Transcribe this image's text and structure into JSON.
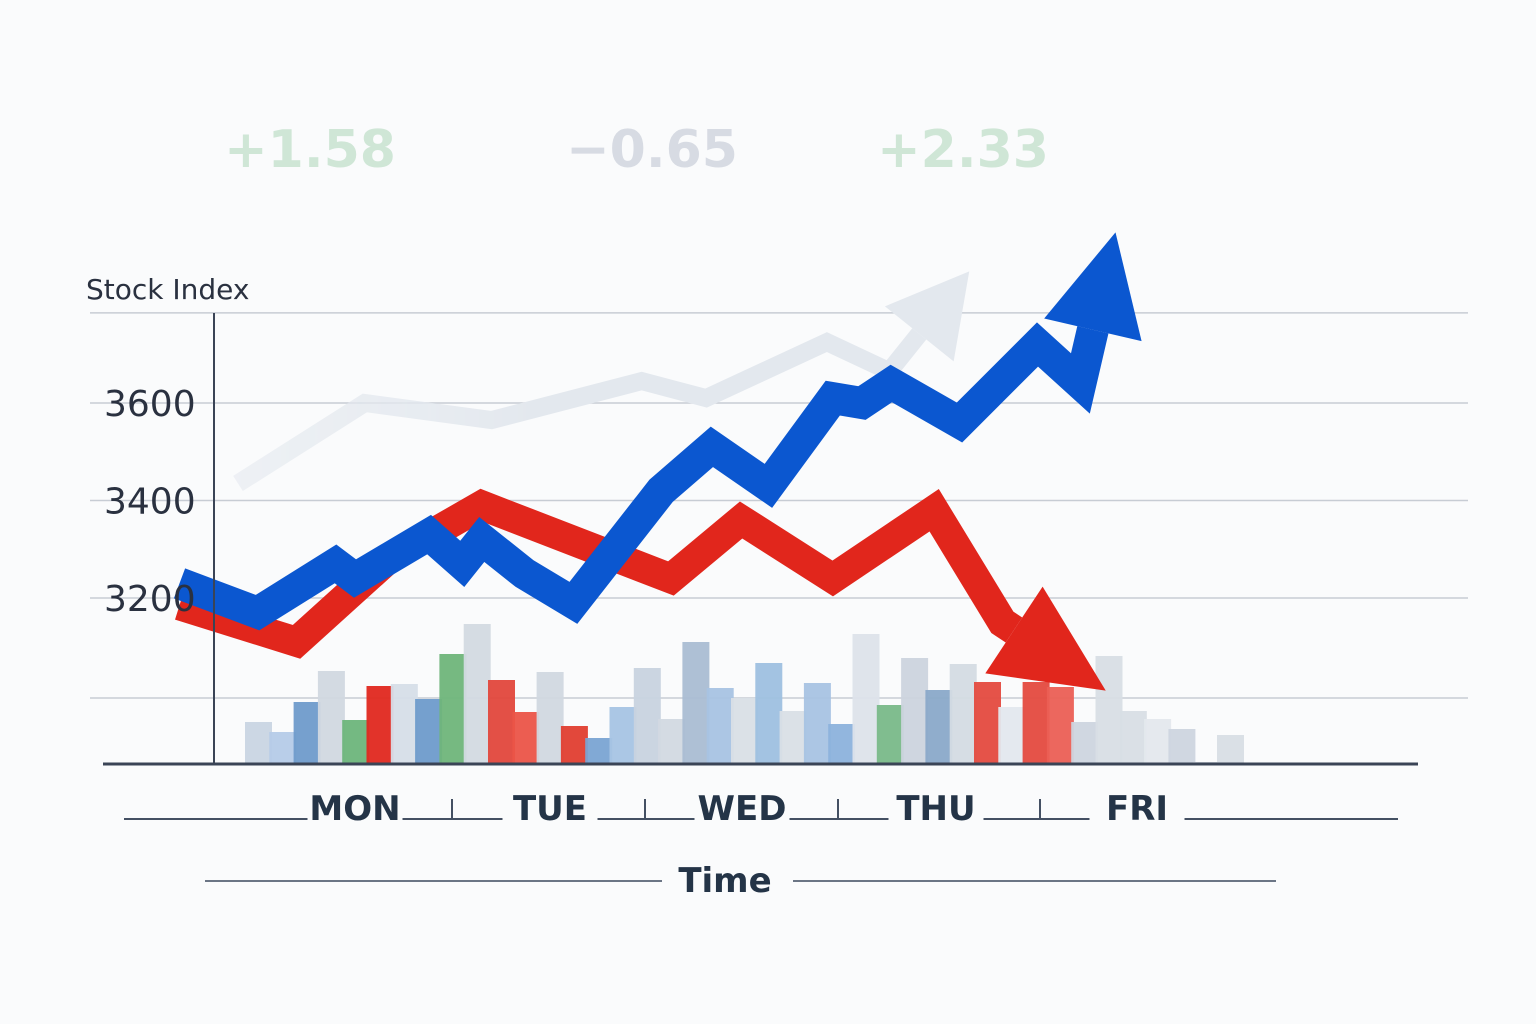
{
  "chart_data": {
    "type": "line",
    "ylabel": "Stock Index",
    "xlabel": "Time",
    "categories": [
      "MON",
      "TUE",
      "WED",
      "THU",
      "FRI"
    ],
    "yticks": [
      3200,
      3400,
      3600
    ],
    "ylim": [
      2960,
      3780
    ],
    "grid": true,
    "annotations": [
      {
        "text": "+1.58",
        "color": "#cfe6d6"
      },
      {
        "text": "−0.65",
        "color": "#d7dbe3"
      },
      {
        "text": "+2.33",
        "color": "#cfe6d6"
      }
    ],
    "series": [
      {
        "color": "#0b57d0",
        "x": [
          -0.9,
          -0.5,
          -0.1,
          0.0,
          0.38,
          0.55,
          0.65,
          0.87,
          1.12,
          1.57,
          1.83,
          2.12,
          2.45,
          2.6,
          2.75,
          3.1,
          3.5,
          3.72,
          3.9
        ],
        "values": [
          3230,
          3170,
          3270,
          3240,
          3330,
          3270,
          3320,
          3250,
          3190,
          3420,
          3510,
          3430,
          3610,
          3600,
          3640,
          3560,
          3720,
          3640,
          3950
        ]
      },
      {
        "color": "#e1261c",
        "x": [
          -0.9,
          -0.3,
          0.17,
          0.65,
          1.62,
          1.98,
          2.45,
          2.97,
          3.32,
          3.85
        ],
        "values": [
          3185,
          3110,
          3280,
          3390,
          3240,
          3360,
          3240,
          3380,
          3150,
          3010
        ]
      },
      {
        "color": "#e3e8ee",
        "x": [
          -0.6,
          0.05,
          0.7,
          1.47,
          1.8,
          2.42,
          2.74,
          3.15
        ],
        "values": [
          3435,
          3600,
          3565,
          3645,
          3610,
          3725,
          3665,
          3870
        ]
      }
    ],
    "volume": {
      "values": [
        42,
        32,
        62,
        93,
        44,
        78,
        80,
        65,
        110,
        140,
        84,
        52,
        92,
        38,
        26,
        57,
        96,
        45,
        122,
        76,
        66,
        101,
        53,
        81,
        40,
        130,
        59,
        106,
        74,
        100,
        82,
        57,
        82,
        77,
        42,
        108,
        53,
        45,
        35,
        2,
        29
      ],
      "colors": [
        "#c9d5e3",
        "#b5cbe8",
        "#6f9bcb",
        "#d1d8e0",
        "#6db57b",
        "#e0281f",
        "#d6dee8",
        "#6e9bcb",
        "#6fb57a",
        "#d3dae2",
        "#e2473c",
        "#eb5448",
        "#d1d8e0",
        "#e03e30",
        "#7aa4d3",
        "#a7c4e4",
        "#c8d3df",
        "#d2d9e1",
        "#aabdd3",
        "#a8c3e3",
        "#d9dfe6",
        "#9ec0e0",
        "#d9dfe6",
        "#a8c3e3",
        "#8cb2dc",
        "#dde3ea",
        "#79b989",
        "#ccd4de",
        "#8aa9c9",
        "#d4dbe3",
        "#e44a3f",
        "#e3e8ee",
        "#e44a3f",
        "#eb5f55",
        "#cdd5df",
        "#d8dee5",
        "#d8dee5",
        "#e4e8ed",
        "#cdd5df",
        "#d8dee5",
        "#d8dee5"
      ]
    }
  }
}
